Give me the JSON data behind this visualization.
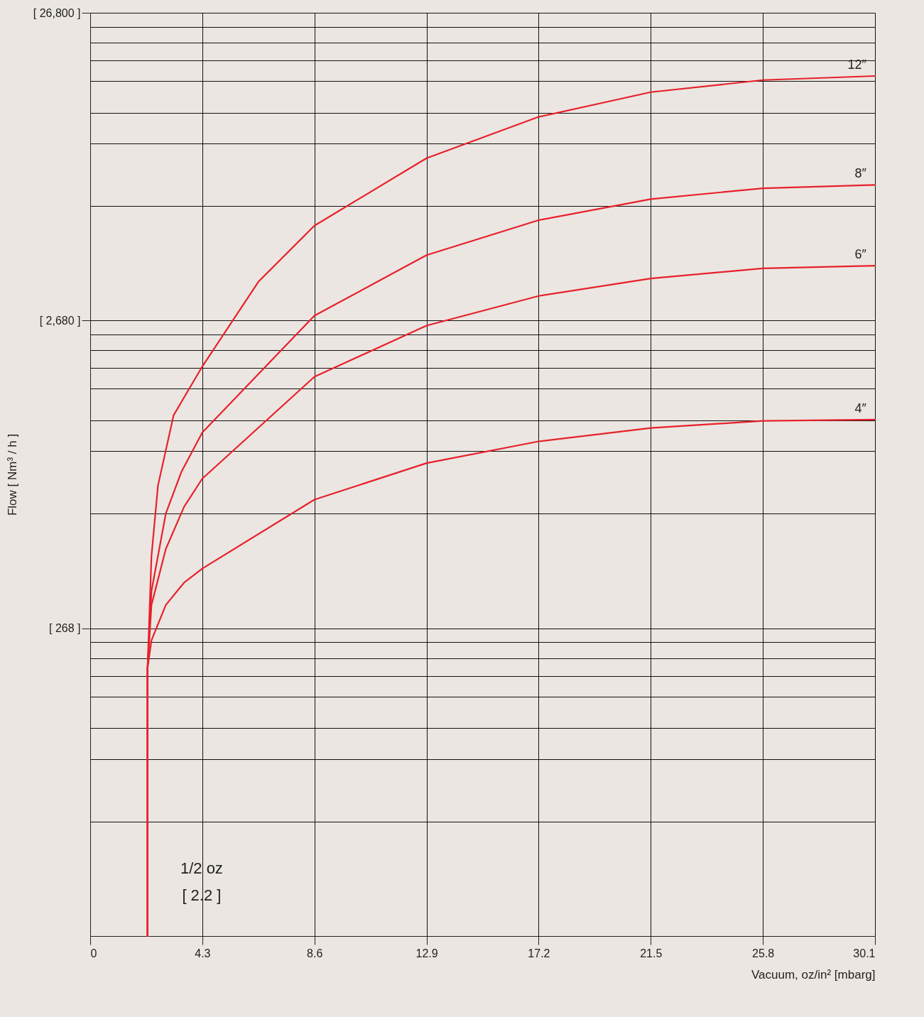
{
  "chart_data": {
    "type": "line",
    "xlabel": "Vacuum, oz/in² [mbarg]",
    "ylabel": "Flow [ Nm³ / h ]",
    "log": "y",
    "grid": true,
    "legend": false,
    "marker": "none",
    "line_style": "solid",
    "xlim": [
      0,
      30.1
    ],
    "xticks": [
      0,
      4.3,
      8.6,
      12.9,
      17.2,
      21.5,
      25.8,
      30.1
    ],
    "ylim": [
      26.8,
      26800
    ],
    "yticks": [
      {
        "value": 63.2,
        "label": null
      },
      {
        "value": 100.8,
        "label": null
      },
      {
        "value": 127,
        "label": null
      },
      {
        "value": 160.8,
        "label": null
      },
      {
        "value": 187.6,
        "label": null
      },
      {
        "value": 214.4,
        "label": null
      },
      {
        "value": 241.2,
        "label": null
      },
      {
        "value": 268,
        "label": "[ 268 ]"
      },
      {
        "value": 632,
        "label": null
      },
      {
        "value": 1008,
        "label": null
      },
      {
        "value": 1270,
        "label": null
      },
      {
        "value": 1608,
        "label": null
      },
      {
        "value": 1876,
        "label": null
      },
      {
        "value": 2144,
        "label": null
      },
      {
        "value": 2412,
        "label": null
      },
      {
        "value": 2680,
        "label": "[ 2,680 ]"
      },
      {
        "value": 6320,
        "label": null
      },
      {
        "value": 10080,
        "label": null
      },
      {
        "value": 12700,
        "label": null
      },
      {
        "value": 16080,
        "label": null
      },
      {
        "value": 18760,
        "label": null
      },
      {
        "value": 21440,
        "label": null
      },
      {
        "value": 24120,
        "label": null
      },
      {
        "value": 26800,
        "label": "[ 26,800 ]"
      }
    ],
    "series": [
      {
        "name": "12″",
        "color": "#e8202a",
        "x": [
          2.2,
          2.2,
          2.35,
          2.6,
          3.2,
          4.3,
          6.45,
          8.6,
          12.9,
          17.2,
          21.5,
          25.8,
          30.1
        ],
        "values": [
          26.8,
          199,
          460,
          780,
          1320,
          1900,
          3580,
          5450,
          9030,
          12300,
          14800,
          16200,
          16700
        ]
      },
      {
        "name": "8″",
        "color": "#e8202a",
        "x": [
          2.2,
          2.2,
          2.35,
          2.9,
          3.5,
          4.3,
          8.6,
          12.9,
          17.2,
          21.5,
          25.8,
          30.1
        ],
        "values": [
          26.8,
          199,
          354,
          632,
          865,
          1160,
          2780,
          4370,
          5680,
          6650,
          7210,
          7390
        ]
      },
      {
        "name": "6″",
        "color": "#e8202a",
        "x": [
          2.2,
          2.2,
          2.35,
          2.9,
          3.6,
          4.3,
          8.6,
          12.9,
          17.2,
          21.5,
          25.8,
          30.1
        ],
        "values": [
          26.8,
          199,
          319,
          485,
          665,
          821,
          1760,
          2580,
          3220,
          3670,
          3960,
          4040
        ]
      },
      {
        "name": "4″",
        "color": "#e8202a",
        "x": [
          2.2,
          2.2,
          2.35,
          2.9,
          3.6,
          4.3,
          8.6,
          12.9,
          17.2,
          21.5,
          25.8,
          30.1
        ],
        "values": [
          26.8,
          199,
          245,
          319,
          377,
          419,
          702,
          922,
          1085,
          1200,
          1265,
          1277
        ]
      }
    ],
    "annotations": [
      "1/2  oz",
      "[ 2.2 ]"
    ]
  }
}
